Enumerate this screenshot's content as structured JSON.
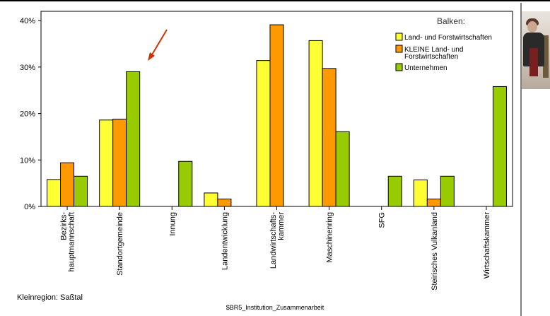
{
  "chart_data": {
    "type": "bar",
    "categories": [
      [
        "Bezirks-",
        "hauptmannschaft"
      ],
      [
        "Standortgemeinde"
      ],
      [
        "Innung"
      ],
      [
        "Landentwicklung"
      ],
      [
        "Landwirtschafts-",
        "kammer"
      ],
      [
        "Maschinenring"
      ],
      [
        "SFG"
      ],
      [
        "Steirisches Vulkanland"
      ],
      [
        "Wirtschaftskammer"
      ]
    ],
    "series": [
      {
        "name": "Land- und Forstwirtschaften",
        "color": "#ffff33",
        "values": [
          5.8,
          18.6,
          0,
          2.9,
          31.4,
          35.7,
          0,
          5.7,
          0
        ]
      },
      {
        "name": "KLEINE Land- und Forstwirtschaften",
        "color": "#ff9900",
        "values": [
          9.4,
          18.8,
          0,
          1.6,
          39.1,
          29.7,
          0,
          1.6,
          0
        ]
      },
      {
        "name": "Unternehmen",
        "color": "#99cc00",
        "values": [
          6.5,
          29.0,
          9.7,
          0,
          0,
          16.1,
          6.5,
          6.5,
          25.8
        ]
      }
    ],
    "ylim": [
      0,
      42
    ],
    "yticks": [
      "0%",
      "10%",
      "20%",
      "30%",
      "40%"
    ],
    "ytick_values": [
      0,
      10,
      20,
      30,
      40
    ],
    "legend_title": "Balken:",
    "legend_position": "top-right",
    "xlabel": "$BR5_Institution_Zusammenarbeit",
    "footnote": "Kleinregion: Saßtal",
    "annotation": "red arrow pointing at Standortgemeinde Unternehmen bar"
  }
}
